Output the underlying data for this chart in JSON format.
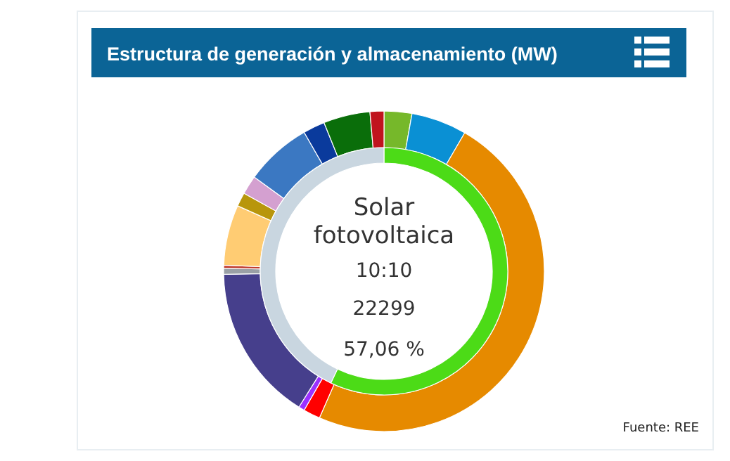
{
  "chart_data": [
    {
      "type": "donut",
      "title": "Estructura de generación y almacenamiento (MW)",
      "categories": [
        null,
        null,
        null,
        null,
        null,
        null,
        null,
        null,
        null,
        null,
        null,
        null,
        null,
        null,
        null
      ],
      "values": [
        2.8,
        5.6,
        48.2,
        1.7,
        0.6,
        15.8,
        0.6,
        0.3,
        6.1,
        1.4,
        1.9,
        6.7,
        2.2,
        4.7,
        1.4
      ],
      "colors": [
        "#76b82a",
        "#0a90d4",
        "#e68a00",
        "#ff0000",
        "#9b30ff",
        "#463f8c",
        "#9aa0a6",
        "#c0392b",
        "#ffcc73",
        "#b8960c",
        "#d4a0d0",
        "#3b78c2",
        "#0a3a9c",
        "#0a6e0a",
        "#c0141e"
      ],
      "annotations": [
        "Fuente: REE"
      ]
    },
    {
      "type": "donut",
      "categories": [
        null,
        null
      ],
      "values": [
        57.06,
        42.94
      ],
      "colors": [
        "#4cdb17",
        "#c9d6e0"
      ],
      "annotations": [
        "Solar fotovoltaica",
        "10:10",
        "22299",
        "57,06 %"
      ]
    }
  ]
}
